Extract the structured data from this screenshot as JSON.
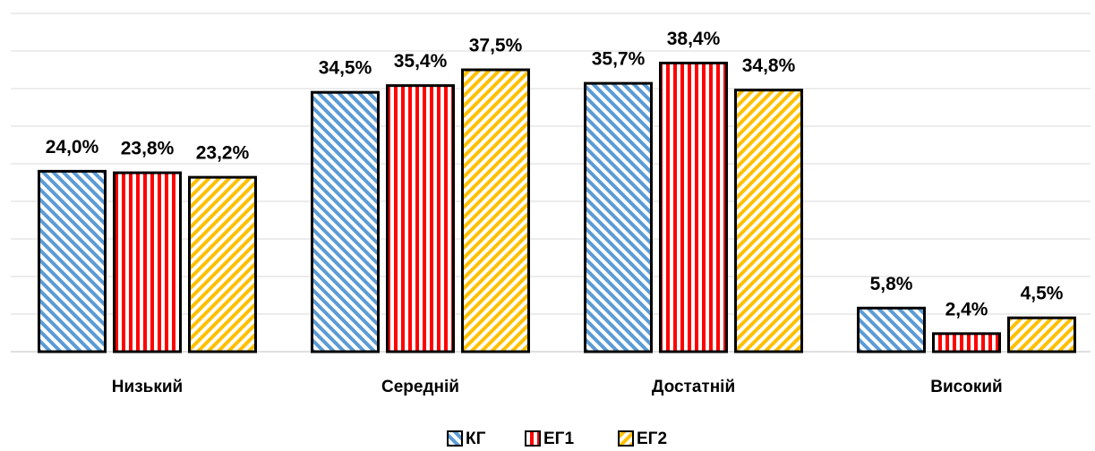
{
  "chart_data": {
    "type": "bar",
    "categories": [
      "Низький",
      "Середній",
      "Достатній",
      "Високий"
    ],
    "series": [
      {
        "name": "КГ",
        "color": "#5b9bd5",
        "pattern": "diagonal-back",
        "values": [
          24.0,
          34.5,
          35.7,
          5.8
        ],
        "value_labels": [
          "24,0%",
          "34,5%",
          "35,7%",
          "5,8%"
        ]
      },
      {
        "name": "ЕГ1",
        "color": "#ff0000",
        "pattern": "vertical",
        "values": [
          23.8,
          35.4,
          38.4,
          2.4
        ],
        "value_labels": [
          "23,8%",
          "35,4%",
          "38,4%",
          "2,4%"
        ]
      },
      {
        "name": "ЕГ2",
        "color": "#ffc000",
        "pattern": "diagonal-forward",
        "values": [
          23.2,
          37.5,
          34.8,
          4.5
        ],
        "value_labels": [
          "23,2%",
          "37,5%",
          "34,8%",
          "4,5%"
        ]
      }
    ],
    "ylim": [
      0,
      45
    ],
    "yticks": [
      0,
      5,
      10,
      15,
      20,
      25,
      30,
      35,
      40,
      45
    ],
    "grid": true,
    "legend": "bottom"
  }
}
